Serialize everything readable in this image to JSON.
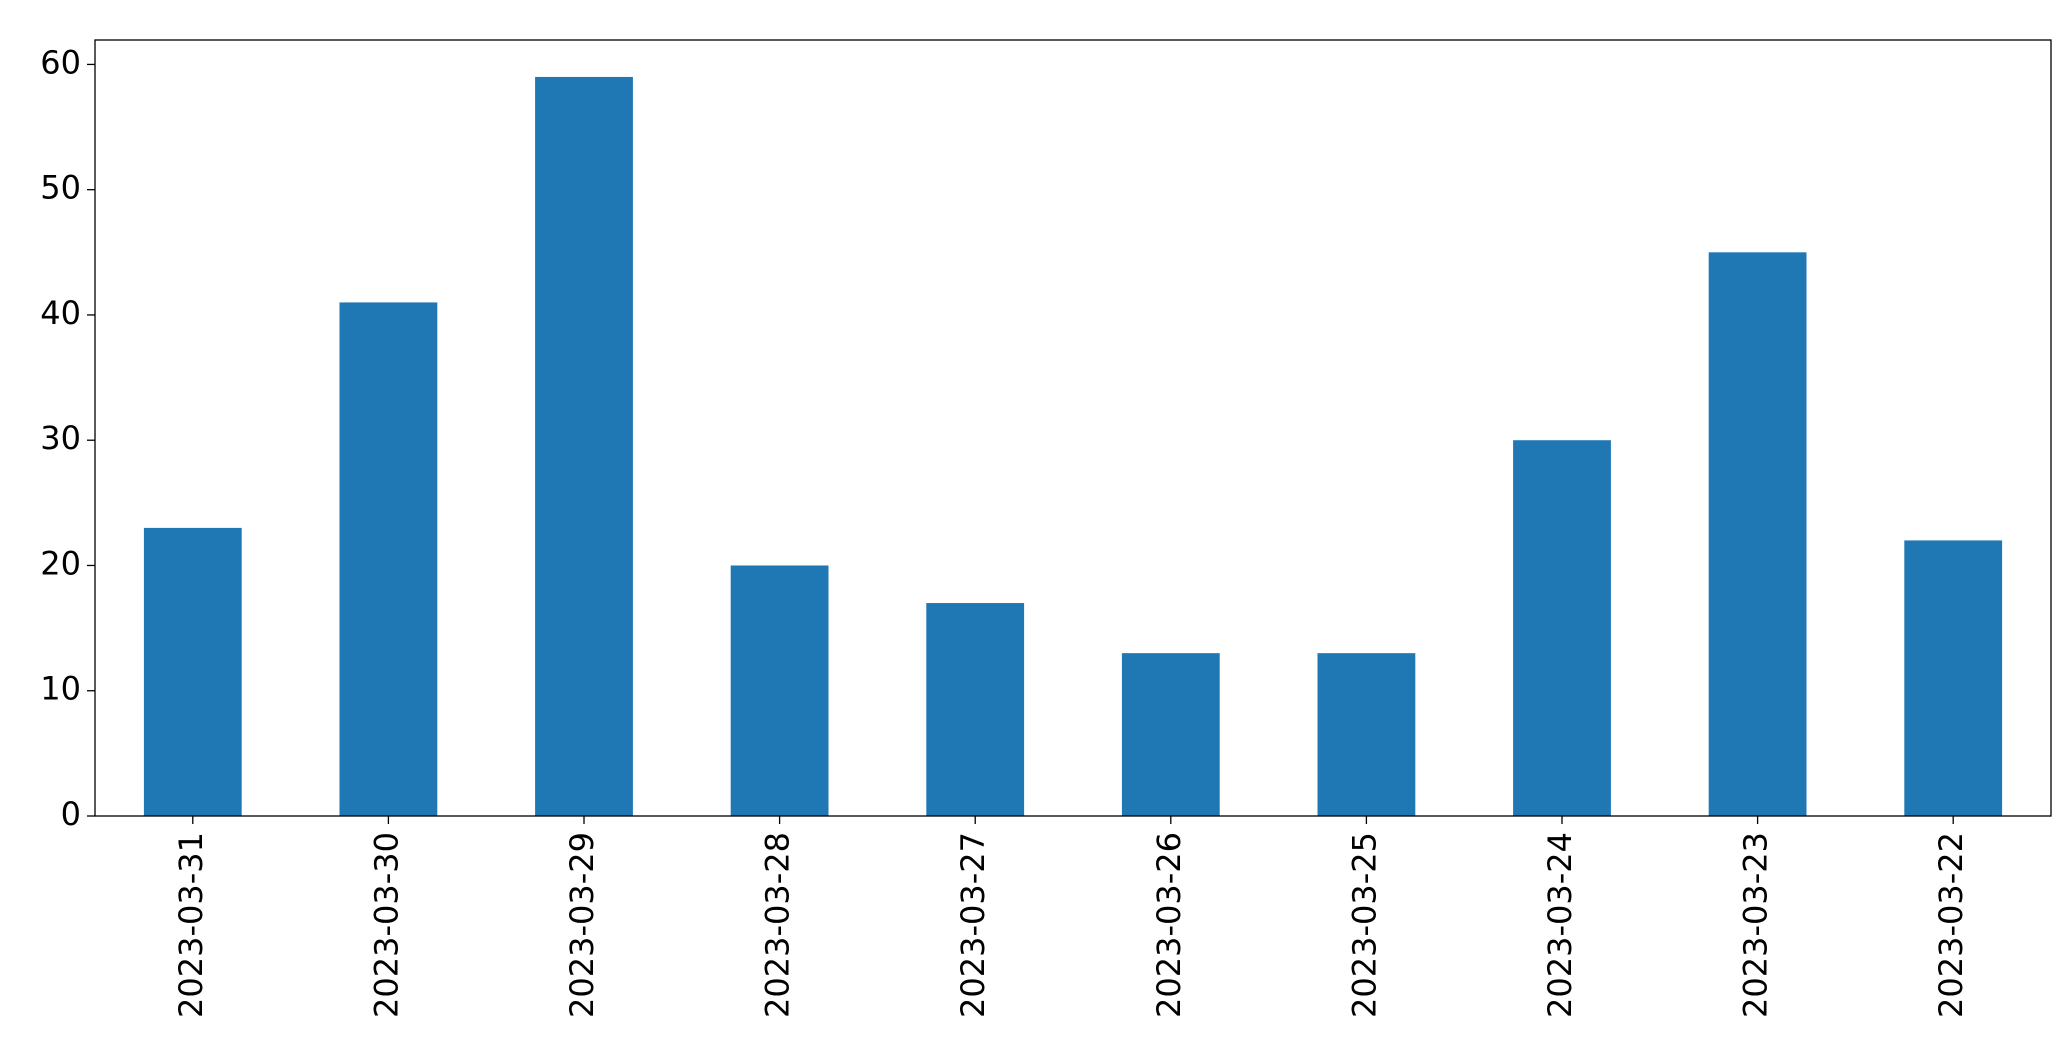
{
  "chart_data": {
    "type": "bar",
    "categories": [
      "2023-03-31",
      "2023-03-30",
      "2023-03-29",
      "2023-03-28",
      "2023-03-27",
      "2023-03-26",
      "2023-03-25",
      "2023-03-24",
      "2023-03-23",
      "2023-03-22"
    ],
    "values": [
      23,
      41,
      59,
      20,
      17,
      13,
      13,
      30,
      45,
      22
    ],
    "color": "#1f77b4",
    "ylim": [
      0,
      61.95
    ],
    "yticks": [
      0,
      10,
      20,
      30,
      40,
      50,
      60
    ],
    "grid": false
  }
}
